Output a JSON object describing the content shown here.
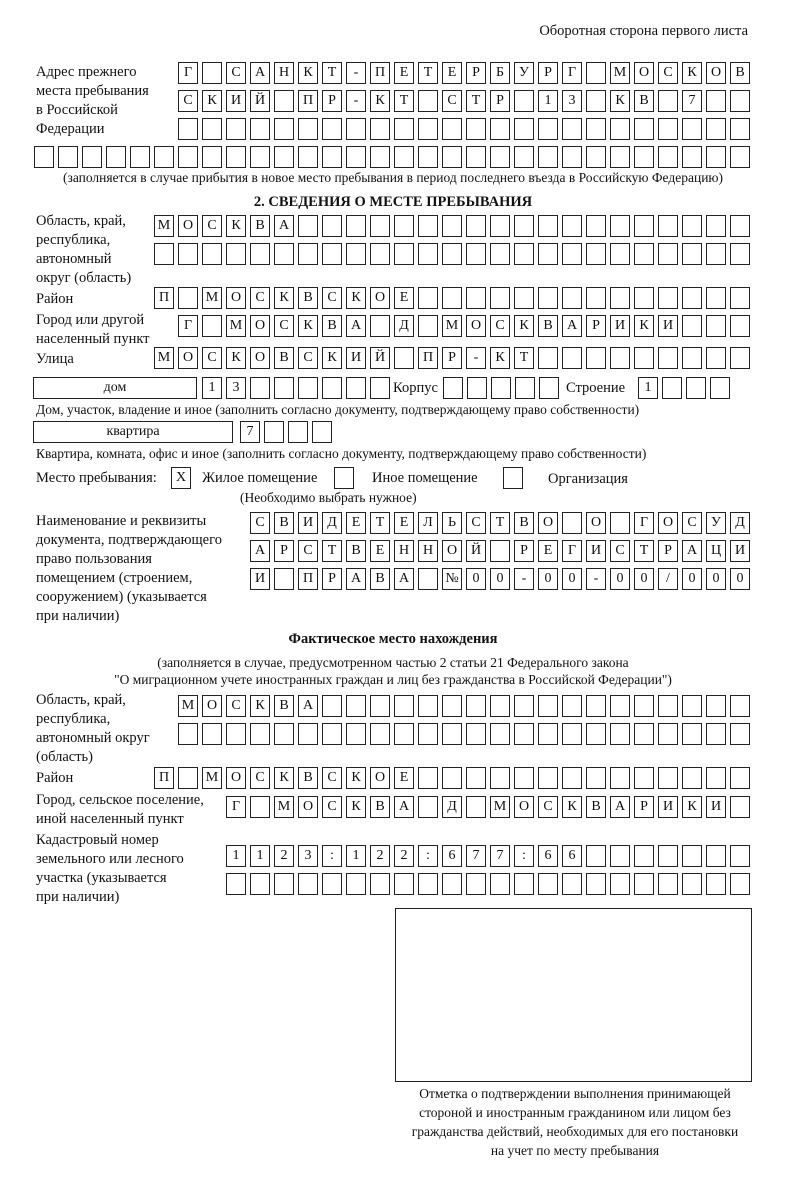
{
  "header": {
    "page_side": "Оборотная сторона первого листа"
  },
  "previous_address": {
    "label": [
      "Адрес прежнего",
      "места пребывания",
      "в Российской",
      "Федерации"
    ],
    "rows": [
      [
        "Г",
        "",
        "С",
        "А",
        "Н",
        "К",
        "Т",
        "-",
        "П",
        "Е",
        "Т",
        "Е",
        "Р",
        "Б",
        "У",
        "Р",
        "Г",
        "",
        "М",
        "О",
        "С",
        "К",
        "О",
        "В"
      ],
      [
        "С",
        "К",
        "И",
        "Й",
        "",
        "П",
        "Р",
        "-",
        "К",
        "Т",
        "",
        "С",
        "Т",
        "Р",
        "",
        "1",
        "3",
        "",
        "К",
        "В",
        "",
        "7"
      ],
      [],
      []
    ],
    "note": "(заполняется в случае прибытия в новое место пребывания в период последнего въезда в Российскую Федерацию)"
  },
  "section2": {
    "title": "2. СВЕДЕНИЯ О МЕСТЕ ПРЕБЫВАНИЯ",
    "region": {
      "label": [
        "Область, край,",
        "республика,",
        "автономный",
        "округ (область)"
      ],
      "rows": [
        [
          "М",
          "О",
          "С",
          "К",
          "В",
          "А"
        ],
        []
      ]
    },
    "district": {
      "label": "Район",
      "row": [
        "П",
        "",
        "М",
        "О",
        "С",
        "К",
        "В",
        "С",
        "К",
        "О",
        "Е"
      ]
    },
    "city": {
      "label": [
        "Город или другой",
        "населенный пункт"
      ],
      "row": [
        "Г",
        "",
        "М",
        "О",
        "С",
        "К",
        "В",
        "А",
        "",
        "Д",
        "",
        "М",
        "О",
        "С",
        "К",
        "В",
        "А",
        "Р",
        "И",
        "К",
        "И"
      ]
    },
    "street": {
      "label": "Улица",
      "row": [
        "М",
        "О",
        "С",
        "К",
        "О",
        "В",
        "С",
        "К",
        "И",
        "Й",
        "",
        "П",
        "Р",
        "-",
        "К",
        "Т"
      ]
    },
    "house": {
      "type": "дом",
      "number": [
        "1",
        "3"
      ],
      "korpus_label": "Корпус",
      "korpus": [],
      "building_label": "Строение",
      "building": [
        "1"
      ],
      "note": "Дом, участок, владение и иное (заполнить согласно документу, подтверждающему право собственности)"
    },
    "apartment": {
      "type": "квартира",
      "number": [
        "7"
      ],
      "note": "Квартира, комната, офис и иное (заполнить согласно документу, подтверждающему право собственности)"
    },
    "place_of_stay": {
      "label": "Место пребывания:",
      "options": [
        {
          "label": "Жилое помещение",
          "mark": "X",
          "checked": true
        },
        {
          "label": "Иное помещение",
          "mark": "",
          "checked": false
        },
        {
          "label": "Организация",
          "mark": "",
          "checked": false
        }
      ],
      "note": "(Необходимо выбрать нужное)"
    },
    "document": {
      "label": [
        "Наименование и реквизиты",
        "документа, подтверждающего",
        "право пользования",
        "помещением (строением,",
        "сооружением) (указывается",
        "при наличии)"
      ],
      "rows": [
        [
          "С",
          "В",
          "И",
          "Д",
          "Е",
          "Т",
          "Е",
          "Л",
          "Ь",
          "С",
          "Т",
          "В",
          "О",
          "",
          "О",
          "",
          "Г",
          "О",
          "С",
          "У",
          "Д"
        ],
        [
          "А",
          "Р",
          "С",
          "Т",
          "В",
          "Е",
          "Н",
          "Н",
          "О",
          "Й",
          "",
          "Р",
          "Е",
          "Г",
          "И",
          "С",
          "Т",
          "Р",
          "А",
          "Ц",
          "И"
        ],
        [
          "И",
          "",
          "П",
          "Р",
          "А",
          "В",
          "А",
          "",
          "№",
          "0",
          "0",
          "-",
          "0",
          "0",
          "-",
          "0",
          "0",
          "/",
          "0",
          "0",
          "0"
        ]
      ]
    }
  },
  "actual_location": {
    "title": "Фактическое место нахождения",
    "note": [
      "(заполняется в случае, предусмотренном частью 2 статьи 21 Федерального закона",
      "\"О миграционном учете иностранных граждан и лиц без гражданства в Российской Федерации\")"
    ],
    "region": {
      "label": [
        "Область, край,",
        "республика,",
        "автономный округ",
        "(область)"
      ],
      "rows": [
        [
          "М",
          "О",
          "С",
          "К",
          "В",
          "А"
        ],
        []
      ]
    },
    "district": {
      "label": "Район",
      "row": [
        "П",
        "",
        "М",
        "О",
        "С",
        "К",
        "В",
        "С",
        "К",
        "О",
        "Е"
      ]
    },
    "city": {
      "label": [
        "Город, сельское поселение,",
        "иной населенный пункт"
      ],
      "row": [
        "Г",
        "",
        "М",
        "О",
        "С",
        "К",
        "В",
        "А",
        "",
        "Д",
        "",
        "М",
        "О",
        "С",
        "К",
        "В",
        "А",
        "Р",
        "И",
        "К",
        "И"
      ]
    },
    "cadastral": {
      "label": [
        "Кадастровый номер",
        "земельного или лесного",
        "участка (указывается",
        "при наличии)"
      ],
      "rows": [
        [
          "1",
          "1",
          "2",
          "3",
          ":",
          "1",
          "2",
          "2",
          ":",
          "6",
          "7",
          "7",
          ":",
          "6",
          "6"
        ],
        []
      ]
    }
  },
  "stamp": {
    "caption": [
      "Отметка о подтверждении выполнения принимающей",
      "стороной и иностранным гражданином или лицом без",
      "гражданства действий, необходимых для его постановки",
      "на учет по месту пребывания"
    ]
  }
}
